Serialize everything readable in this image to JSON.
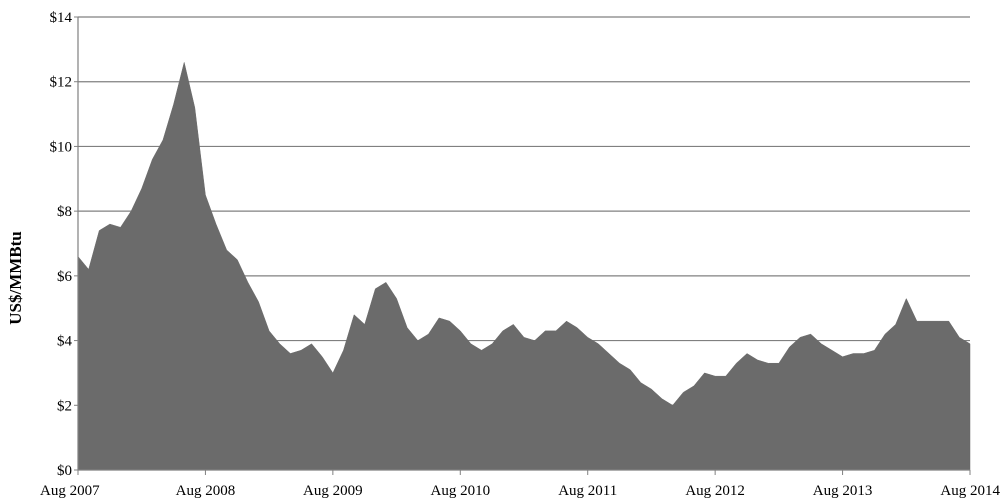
{
  "chart_data": {
    "type": "area",
    "ylabel": "US$/MMBtu",
    "xlabel": "",
    "ylim": [
      0,
      14
    ],
    "y_tick_labels": [
      "$0",
      "$2",
      "$4",
      "$6",
      "$8",
      "$10",
      "$12",
      "$14"
    ],
    "x_tick_labels": [
      "Aug 2007",
      "Aug 2008",
      "Aug 2009",
      "Aug 2010",
      "Aug 2011",
      "Aug 2012",
      "Aug 2013",
      "Aug 2014"
    ],
    "grid": true,
    "fill_color": "#6b6b6b",
    "gridline_color": "#808080",
    "series": [
      {
        "x": [
          "2007-08",
          "2007-09",
          "2007-10",
          "2007-11",
          "2007-12",
          "2008-01",
          "2008-02",
          "2008-03",
          "2008-04",
          "2008-05",
          "2008-06",
          "2008-07",
          "2008-08",
          "2008-09",
          "2008-10",
          "2008-11",
          "2008-12",
          "2009-01",
          "2009-02",
          "2009-03",
          "2009-04",
          "2009-05",
          "2009-06",
          "2009-07",
          "2009-08",
          "2009-09",
          "2009-10",
          "2009-11",
          "2009-12",
          "2010-01",
          "2010-02",
          "2010-03",
          "2010-04",
          "2010-05",
          "2010-06",
          "2010-07",
          "2010-08",
          "2010-09",
          "2010-10",
          "2010-11",
          "2010-12",
          "2011-01",
          "2011-02",
          "2011-03",
          "2011-04",
          "2011-05",
          "2011-06",
          "2011-07",
          "2011-08",
          "2011-09",
          "2011-10",
          "2011-11",
          "2011-12",
          "2012-01",
          "2012-02",
          "2012-03",
          "2012-04",
          "2012-05",
          "2012-06",
          "2012-07",
          "2012-08",
          "2012-09",
          "2012-10",
          "2012-11",
          "2012-12",
          "2013-01",
          "2013-02",
          "2013-03",
          "2013-04",
          "2013-05",
          "2013-06",
          "2013-07",
          "2013-08",
          "2013-09",
          "2013-10",
          "2013-11",
          "2013-12",
          "2014-01",
          "2014-02",
          "2014-03",
          "2014-04",
          "2014-05",
          "2014-06",
          "2014-07",
          "2014-08"
        ],
        "values": [
          6.6,
          6.2,
          7.4,
          7.6,
          7.5,
          8.0,
          8.7,
          9.6,
          10.2,
          11.3,
          12.6,
          11.2,
          8.5,
          7.6,
          6.8,
          6.5,
          5.8,
          5.2,
          4.3,
          3.9,
          3.6,
          3.7,
          3.9,
          3.5,
          3.0,
          3.7,
          4.8,
          4.5,
          5.6,
          5.8,
          5.3,
          4.4,
          4.0,
          4.2,
          4.7,
          4.6,
          4.3,
          3.9,
          3.7,
          3.9,
          4.3,
          4.5,
          4.1,
          4.0,
          4.3,
          4.3,
          4.6,
          4.4,
          4.1,
          3.9,
          3.6,
          3.3,
          3.1,
          2.7,
          2.5,
          2.2,
          2.0,
          2.4,
          2.6,
          3.0,
          2.9,
          2.9,
          3.3,
          3.6,
          3.4,
          3.3,
          3.3,
          3.8,
          4.1,
          4.2,
          3.9,
          3.7,
          3.5,
          3.6,
          3.6,
          3.7,
          4.2,
          4.5,
          5.3,
          4.6,
          4.6,
          4.6,
          4.6,
          4.1,
          3.9
        ]
      }
    ]
  }
}
